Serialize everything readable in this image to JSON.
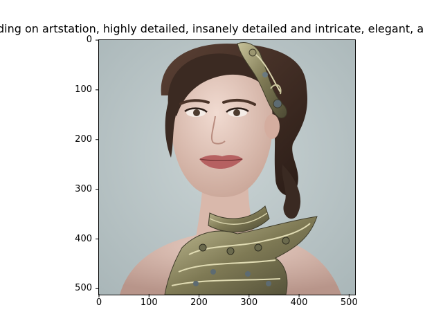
{
  "figure": {
    "title": "...ding on artstation, highly detailed, insanely detailed and intricate, elegant, a...",
    "title_visible": "ding on artstation, highly detailed, insanely detailed and intricate, elegant, a"
  },
  "image": {
    "subject": "portrait painting of a young woman with dark hair in an updo, ornate metal hair piece and jeweled filigree collar necklace",
    "background_color": "#b9c6c8",
    "skin_color": "#e6c9bd",
    "hair_color": "#3b2a22",
    "jewelry_color": "#8d8a66"
  },
  "axes": {
    "x_ticks": [
      "0",
      "100",
      "200",
      "300",
      "400",
      "500"
    ],
    "y_ticks": [
      "0",
      "100",
      "200",
      "300",
      "400",
      "500"
    ],
    "x_range": [
      0,
      512
    ],
    "y_range": [
      0,
      512
    ]
  }
}
